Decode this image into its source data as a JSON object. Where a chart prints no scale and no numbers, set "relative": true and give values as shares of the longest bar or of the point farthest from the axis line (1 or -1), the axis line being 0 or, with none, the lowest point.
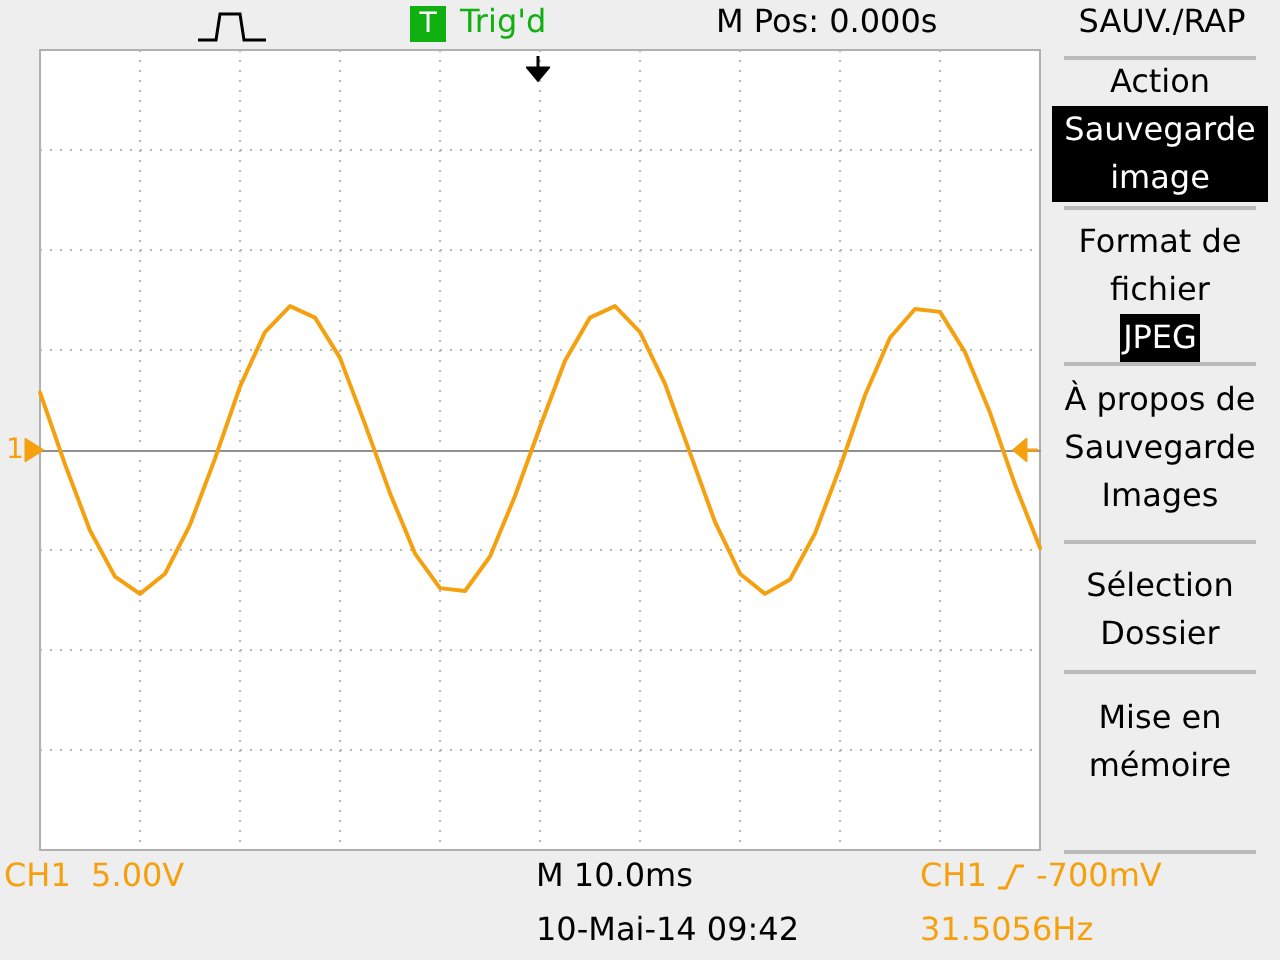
{
  "chart_data": {
    "type": "line",
    "relative": true,
    "grid": true,
    "marker": "none",
    "line_style": "solid",
    "categories": [
      null,
      null,
      null,
      null,
      null,
      null,
      null,
      null,
      null,
      null,
      null,
      null,
      null,
      null,
      null,
      null,
      null,
      null,
      null,
      null,
      null,
      null,
      null,
      null,
      null,
      null,
      null,
      null,
      null,
      null,
      null,
      null,
      null,
      null,
      null,
      null,
      null,
      null,
      null,
      null,
      null
    ],
    "series": [
      {
        "color": "#f5a00f",
        "values": [
          0.4,
          -0.1,
          -0.56,
          -0.88,
          -1.0,
          -0.86,
          -0.52,
          -0.06,
          0.44,
          0.82,
          1.0,
          0.92,
          0.64,
          0.18,
          -0.3,
          -0.72,
          -0.96,
          -0.98,
          -0.74,
          -0.32,
          0.16,
          0.62,
          0.92,
          1.0,
          0.82,
          0.46,
          -0.02,
          -0.5,
          -0.86,
          -1.0,
          -0.9,
          -0.58,
          -0.12,
          0.38,
          0.78,
          0.98,
          0.96,
          0.68,
          0.26,
          -0.24,
          -0.68
        ]
      }
    ],
    "annotations": [
      "T",
      "Trig'd",
      "M Pos: 0.000s",
      "SAUV./RAP",
      "Action",
      "Sauvegarde image",
      "Format de fichier",
      "JPEG",
      "À propos de Sauvegarde Images",
      "Sélection Dossier",
      "Mise en mémoire",
      "CH1  5.00V",
      "M 10.0ms",
      "CH1",
      "-700mV",
      "10-Mai-14 09:42",
      "31.5056Hz",
      "1"
    ]
  }
}
